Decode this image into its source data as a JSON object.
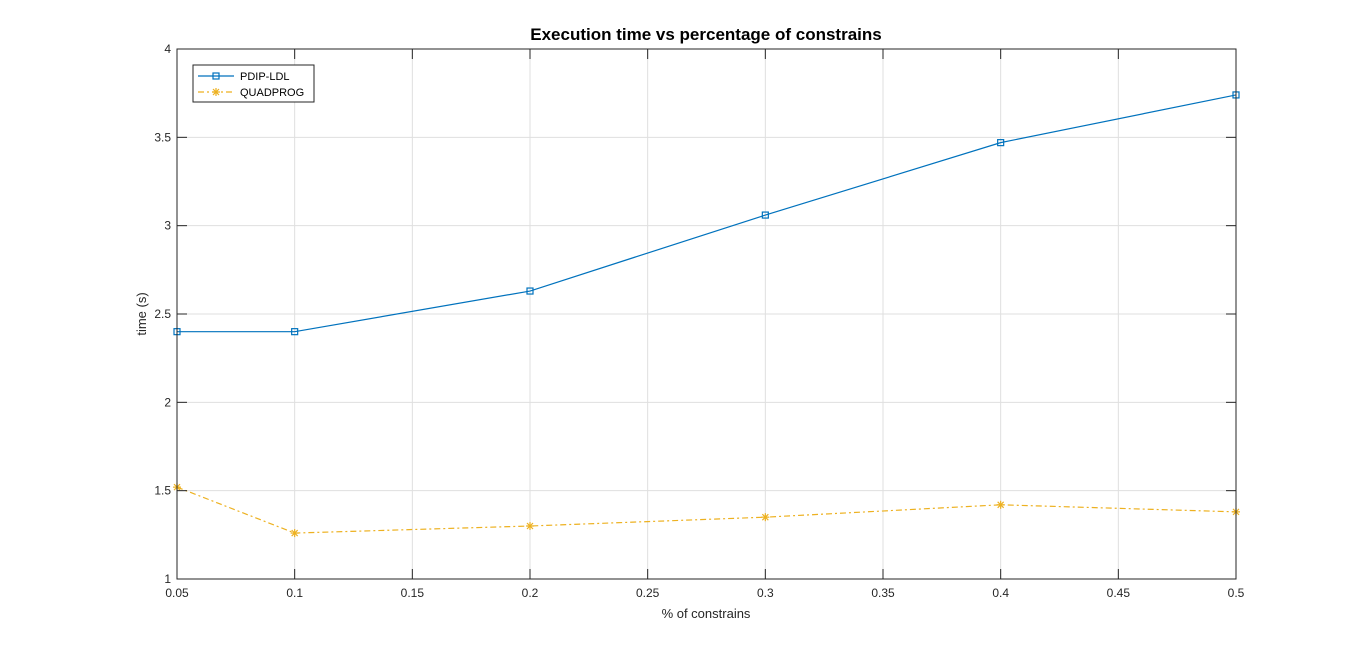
{
  "chart_data": {
    "type": "line",
    "title": "Execution time vs percentage of constrains",
    "xlabel": "% of constrains",
    "ylabel": "time (s)",
    "xlim": [
      0.05,
      0.5
    ],
    "ylim": [
      1,
      4
    ],
    "xticks": [
      0.05,
      0.1,
      0.15,
      0.2,
      0.25,
      0.3,
      0.35,
      0.4,
      0.45,
      0.5
    ],
    "xtick_labels": [
      "0.05",
      "0.1",
      "0.15",
      "0.2",
      "0.25",
      "0.3",
      "0.35",
      "0.4",
      "0.45",
      "0.5"
    ],
    "yticks": [
      1,
      1.5,
      2,
      2.5,
      3,
      3.5,
      4
    ],
    "ytick_labels": [
      "1",
      "1.5",
      "2",
      "2.5",
      "3",
      "3.5",
      "4"
    ],
    "grid": true,
    "legend_position": "top-left",
    "x": [
      0.05,
      0.1,
      0.2,
      0.3,
      0.4,
      0.5
    ],
    "series": [
      {
        "name": "PDIP-LDL",
        "values": [
          2.4,
          2.4,
          2.63,
          3.06,
          3.47,
          3.74
        ],
        "color": "#0072BD",
        "marker": "square",
        "line_style": "solid"
      },
      {
        "name": "QUADPROG",
        "values": [
          1.52,
          1.26,
          1.3,
          1.35,
          1.42,
          1.38
        ],
        "color": "#EDB120",
        "marker": "asterisk",
        "line_style": "dash-dot"
      }
    ]
  }
}
